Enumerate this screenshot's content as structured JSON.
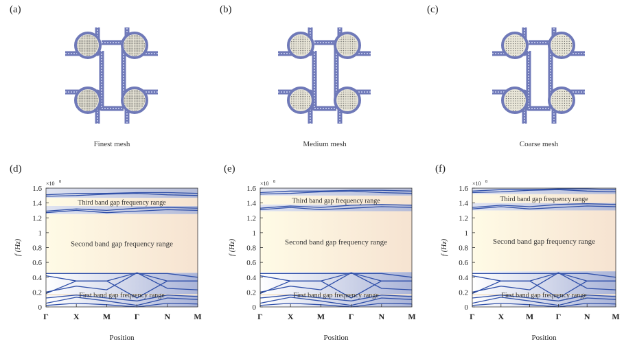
{
  "panels": {
    "a": "(a)",
    "b": "(b)",
    "c": "(c)",
    "d": "(d)",
    "e": "(e)",
    "f": "(f)"
  },
  "mesh_captions": [
    "Finest mesh",
    "Medium mesh",
    "Coarse mesh"
  ],
  "chart_data": [
    {
      "type": "line",
      "xlabel": "Position",
      "ylabel": "f  (Hz)",
      "y_exponent_label": "×10",
      "y_exponent": "8",
      "xticks": [
        "Γ",
        "X",
        "M",
        "Γ",
        "N",
        "M"
      ],
      "yticks": [
        "0",
        "0.2",
        "0.4",
        "0.6",
        "0.8",
        "1",
        "1.2",
        "1.4",
        "1.6"
      ],
      "ylim": [
        0,
        1.6
      ],
      "annotations": [
        "Third band gap frequency range",
        "Second band gap frequency range",
        "First band gap frequency range"
      ],
      "band_gaps": [
        [
          0.155,
          0.175
        ],
        [
          0.46,
          1.25
        ],
        [
          1.36,
          1.47
        ]
      ]
    },
    {
      "type": "line",
      "xlabel": "Position",
      "ylabel": "f  (Hz)",
      "y_exponent_label": "×10",
      "y_exponent": "8",
      "xticks": [
        "Γ",
        "X",
        "M",
        "Γ",
        "N",
        "M"
      ],
      "yticks": [
        "0",
        "0.2",
        "0.4",
        "0.6",
        "0.8",
        "1",
        "1.2",
        "1.4",
        "1.6"
      ],
      "ylim": [
        0,
        1.6
      ],
      "annotations": [
        "Third band gap frequency range",
        "Second band gap frequency range",
        "First band gap frequency range"
      ],
      "band_gaps": [
        [
          0.155,
          0.175
        ],
        [
          0.47,
          1.29
        ],
        [
          1.38,
          1.5
        ]
      ]
    },
    {
      "type": "line",
      "xlabel": "Position",
      "ylabel": "f  (Hz)",
      "y_exponent_label": "×10",
      "y_exponent": "8",
      "xticks": [
        "Γ",
        "X",
        "M",
        "Γ",
        "N",
        "M"
      ],
      "yticks": [
        "0",
        "0.2",
        "0.4",
        "0.6",
        "0.8",
        "1",
        "1.2",
        "1.4",
        "1.6"
      ],
      "ylim": [
        0,
        1.6
      ],
      "annotations": [
        "Third band gap frequency range",
        "Second band gap frequency range",
        "First band gap frequency range"
      ],
      "band_gaps": [
        [
          0.155,
          0.175
        ],
        [
          0.48,
          1.3
        ],
        [
          1.4,
          1.52
        ]
      ]
    }
  ]
}
